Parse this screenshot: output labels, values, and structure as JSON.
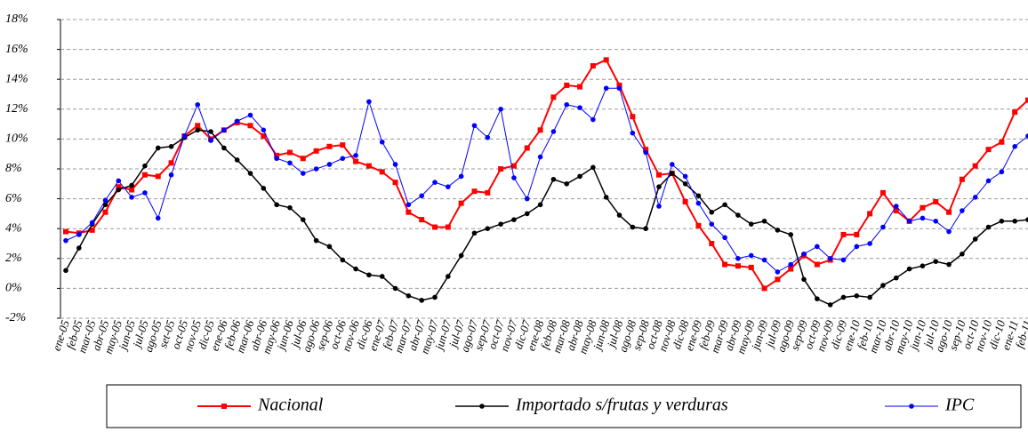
{
  "chart_data": {
    "type": "line",
    "categories": [
      "ene-05",
      "feb-05",
      "mar-05",
      "abr-05",
      "may-05",
      "jun-05",
      "jul-05",
      "ago-05",
      "set-05",
      "oct-05",
      "nov-05",
      "dic-05",
      "ene-06",
      "feb-06",
      "mar-06",
      "abr-06",
      "may-06",
      "jun-06",
      "jul-06",
      "ago-06",
      "sep-06",
      "oct-06",
      "nov-06",
      "dic-06",
      "ene-07",
      "feb-07",
      "mar-07",
      "abr-07",
      "may-07",
      "jun-07",
      "jul-07",
      "ago-07",
      "sep-07",
      "oct-07",
      "nov-07",
      "dic-07",
      "ene-08",
      "feb-08",
      "mar-08",
      "abr-08",
      "may-08",
      "jun-08",
      "jul-08",
      "ago-08",
      "sep-08",
      "oct-08",
      "nov-08",
      "dic-08",
      "ene-09",
      "feb-09",
      "mar-09",
      "abr-09",
      "may-09",
      "jun-09",
      "jul-09",
      "ago-09",
      "sep-09",
      "oct-09",
      "nov-09",
      "dic-09",
      "ene-10",
      "feb-10",
      "mar-10",
      "abr-10",
      "may-10",
      "jun-10",
      "jul-10",
      "ago-10",
      "sep-10",
      "oct-10",
      "nov-10",
      "dic-10",
      "ene-11",
      "feb-11"
    ],
    "series": [
      {
        "name": "Nacional",
        "color": "#ff0000",
        "marker": "square",
        "width": 2,
        "values": [
          3.8,
          3.7,
          3.9,
          5.1,
          6.8,
          6.6,
          7.6,
          7.5,
          8.4,
          10.2,
          10.9,
          10.0,
          10.6,
          11.1,
          10.9,
          10.2,
          8.9,
          9.1,
          8.7,
          9.2,
          9.5,
          9.6,
          8.5,
          8.2,
          7.8,
          7.1,
          5.1,
          4.6,
          4.1,
          4.1,
          5.7,
          6.5,
          6.4,
          8.0,
          8.2,
          9.4,
          10.6,
          12.8,
          13.6,
          13.5,
          14.9,
          15.3,
          13.6,
          11.5,
          9.3,
          7.6,
          7.7,
          5.8,
          4.2,
          3.0,
          1.6,
          1.5,
          1.4,
          0.0,
          0.6,
          1.3,
          2.2,
          1.6,
          1.9,
          3.6,
          3.6,
          5.0,
          6.4,
          5.2,
          4.5,
          5.4,
          5.8,
          5.1,
          7.3,
          8.2,
          9.3,
          9.8,
          11.8,
          12.6
        ]
      },
      {
        "name": "Importado s/frutas y verduras",
        "color": "#000000",
        "marker": "circle",
        "width": 1.5,
        "values": [
          1.2,
          2.7,
          4.3,
          5.6,
          6.6,
          6.9,
          8.2,
          9.4,
          9.5,
          10.1,
          10.6,
          10.5,
          9.4,
          8.6,
          7.7,
          6.7,
          5.6,
          5.4,
          4.6,
          3.2,
          2.8,
          1.9,
          1.3,
          0.9,
          0.8,
          0.0,
          -0.5,
          -0.8,
          -0.6,
          0.8,
          2.2,
          3.7,
          4.0,
          4.3,
          4.6,
          5.0,
          5.6,
          7.3,
          7.0,
          7.5,
          8.1,
          6.1,
          4.9,
          4.1,
          4.0,
          6.8,
          7.7,
          7.0,
          6.2,
          5.1,
          5.6,
          4.9,
          4.3,
          4.5,
          3.9,
          3.6,
          0.6,
          -0.7,
          -1.1,
          -0.6,
          -0.5,
          -0.6,
          0.2,
          0.7,
          1.3,
          1.5,
          1.8,
          1.6,
          2.3,
          3.3,
          4.1,
          4.5,
          4.5,
          4.6
        ]
      },
      {
        "name": "IPC",
        "color": "#0000ff",
        "marker": "circle",
        "width": 1,
        "values": [
          3.2,
          3.6,
          4.4,
          5.9,
          7.2,
          6.1,
          6.4,
          4.7,
          7.6,
          10.2,
          12.3,
          9.9,
          10.6,
          11.2,
          11.6,
          10.6,
          8.7,
          8.4,
          7.7,
          8.0,
          8.3,
          8.7,
          8.9,
          12.5,
          9.8,
          8.3,
          5.6,
          6.2,
          7.1,
          6.8,
          7.5,
          10.9,
          10.1,
          12.0,
          7.4,
          6.0,
          8.8,
          10.5,
          12.3,
          12.1,
          11.3,
          13.4,
          13.4,
          10.4,
          9.1,
          5.5,
          8.3,
          7.5,
          5.7,
          4.3,
          3.4,
          2.0,
          2.2,
          1.9,
          1.1,
          1.6,
          2.3,
          2.8,
          2.0,
          1.9,
          2.8,
          3.0,
          4.1,
          5.5,
          4.5,
          4.7,
          4.5,
          3.8,
          5.2,
          6.1,
          7.2,
          7.8,
          9.5,
          10.2
        ]
      }
    ],
    "ylim": [
      -2,
      18
    ],
    "yticks": [
      {
        "value": -2,
        "label": "-2%"
      },
      {
        "value": 0,
        "label": "0%"
      },
      {
        "value": 2,
        "label": "2%"
      },
      {
        "value": 4,
        "label": "4%"
      },
      {
        "value": 6,
        "label": "6%"
      },
      {
        "value": 8,
        "label": "8%"
      },
      {
        "value": 10,
        "label": "10%"
      },
      {
        "value": 12,
        "label": "12%"
      },
      {
        "value": 14,
        "label": "14%"
      },
      {
        "value": 16,
        "label": "16%"
      },
      {
        "value": 18,
        "label": "18%"
      }
    ],
    "grid": true,
    "legend": "bottom"
  }
}
